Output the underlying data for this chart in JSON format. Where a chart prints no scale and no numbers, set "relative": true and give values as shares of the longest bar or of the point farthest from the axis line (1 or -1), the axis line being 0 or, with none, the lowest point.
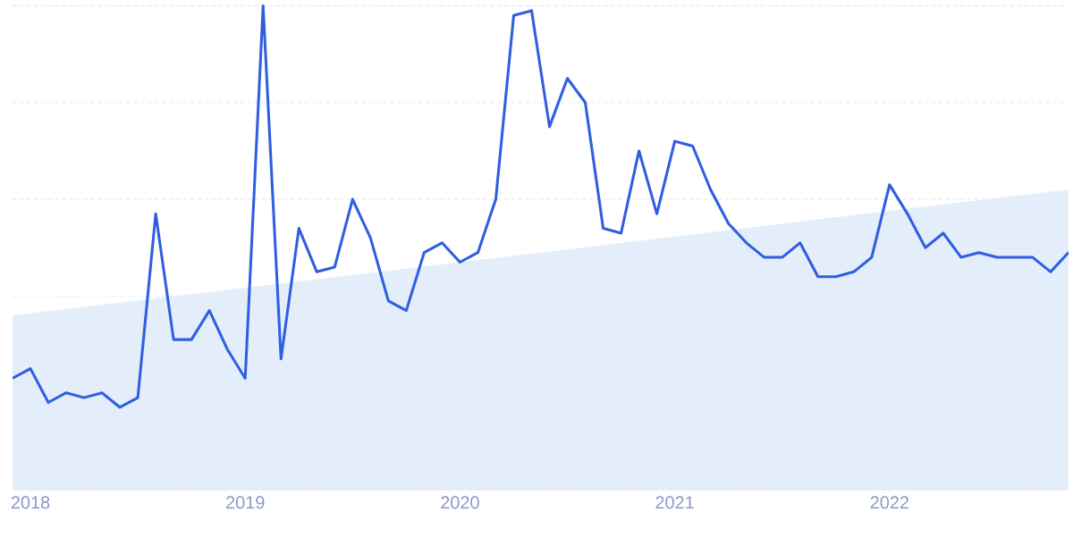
{
  "chart_data": {
    "type": "line",
    "relative": true,
    "grid": "y",
    "marker": "none",
    "line_style": "solid",
    "xlim": [
      "2017-12",
      "2022-11"
    ],
    "xticks": [
      "2018",
      "2019",
      "2020",
      "2021",
      "2022"
    ],
    "series": [
      {
        "type": "area",
        "color": "#e4eefb",
        "x": [
          "2017-12",
          "2022-11"
        ],
        "values": [
          0.36,
          0.62
        ]
      },
      {
        "type": "line",
        "color": "#2f5fe0",
        "x": [
          "2017-12",
          "2018-01",
          "2018-02",
          "2018-03",
          "2018-04",
          "2018-05",
          "2018-06",
          "2018-07",
          "2018-08",
          "2018-09",
          "2018-10",
          "2018-11",
          "2018-12",
          "2019-01",
          "2019-02",
          "2019-03",
          "2019-04",
          "2019-05",
          "2019-06",
          "2019-07",
          "2019-08",
          "2019-09",
          "2019-10",
          "2019-11",
          "2019-12",
          "2020-01",
          "2020-02",
          "2020-03",
          "2020-04",
          "2020-05",
          "2020-06",
          "2020-07",
          "2020-08",
          "2020-09",
          "2020-10",
          "2020-11",
          "2020-12",
          "2021-01",
          "2021-02",
          "2021-03",
          "2021-04",
          "2021-05",
          "2021-06",
          "2021-07",
          "2021-08",
          "2021-09",
          "2021-10",
          "2021-11",
          "2021-12",
          "2022-01",
          "2022-02",
          "2022-03",
          "2022-04",
          "2022-05",
          "2022-06",
          "2022-07",
          "2022-08",
          "2022-09",
          "2022-10",
          "2022-11"
        ],
        "values": [
          0.23,
          0.25,
          0.18,
          0.2,
          0.19,
          0.2,
          0.17,
          0.19,
          0.57,
          0.31,
          0.31,
          0.37,
          0.29,
          0.23,
          1,
          0.27,
          0.54,
          0.45,
          0.46,
          0.6,
          0.52,
          0.39,
          0.37,
          0.49,
          0.51,
          0.47,
          0.49,
          0.6,
          0.98,
          0.99,
          0.75,
          0.85,
          0.8,
          0.54,
          0.53,
          0.7,
          0.57,
          0.72,
          0.71,
          0.62,
          0.55,
          0.51,
          0.48,
          0.48,
          0.51,
          0.44,
          0.44,
          0.45,
          0.48,
          0.63,
          0.57,
          0.5,
          0.53,
          0.48,
          0.49,
          0.48,
          0.48,
          0.48,
          0.45,
          0.49
        ]
      }
    ]
  }
}
